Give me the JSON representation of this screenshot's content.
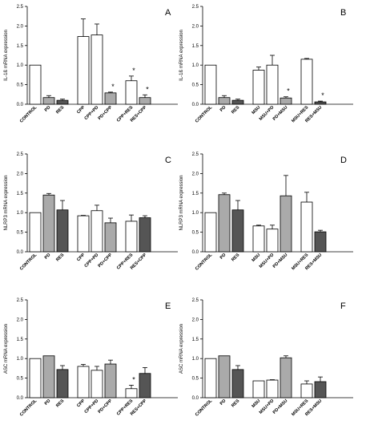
{
  "figure": {
    "panels": [
      {
        "letter": "A",
        "ylabel": "IL-1ß mRNA expression"
      },
      {
        "letter": "B",
        "ylabel": "IL-1ß mRNA expression"
      },
      {
        "letter": "C",
        "ylabel": "NLRP3 mRNA expression"
      },
      {
        "letter": "D",
        "ylabel": "NLRP3 mRNA expression"
      },
      {
        "letter": "E",
        "ylabel": "ASC mRNA expression"
      },
      {
        "letter": "F",
        "ylabel": "ASC mRNA expression"
      }
    ]
  },
  "chart_data": [
    {
      "type": "bar",
      "panel": "A",
      "title": "",
      "xlabel": "",
      "ylabel": "IL-1ß mRNA expression",
      "ylim": [
        0,
        2.5
      ],
      "yticks": [
        0.0,
        0.5,
        1.0,
        1.5,
        2.0,
        2.5
      ],
      "categories": [
        "CONTROL",
        "PD",
        "RES",
        "CPP",
        "CPP+PD",
        "PD+CPP",
        "CPP+RES",
        "RES+CPP"
      ],
      "groups": [
        [
          0,
          1,
          2
        ],
        [
          3,
          4,
          5
        ],
        [
          6,
          7
        ]
      ],
      "values": [
        1.0,
        0.17,
        0.1,
        1.73,
        1.77,
        0.29,
        0.6,
        0.17
      ],
      "errors": [
        0.0,
        0.05,
        0.03,
        0.45,
        0.28,
        0.02,
        0.12,
        0.07
      ],
      "fills": [
        "#ffffff",
        "#aaaaaa",
        "#555555",
        "#ffffff",
        "#ffffff",
        "#aaaaaa",
        "#ffffff",
        "#aaaaaa"
      ],
      "annotations": [
        "",
        "",
        "",
        "",
        "",
        "*",
        "*",
        "*"
      ]
    },
    {
      "type": "bar",
      "panel": "B",
      "title": "",
      "xlabel": "",
      "ylabel": "IL-1ß mRNA expression",
      "ylim": [
        0,
        2.5
      ],
      "yticks": [
        0.0,
        0.5,
        1.0,
        1.5,
        2.0,
        2.5
      ],
      "categories": [
        "CONTROL",
        "PD",
        "RES",
        "MSU",
        "MSU+PD",
        "PD+MSU",
        "MSU+RES",
        "RES+MSU"
      ],
      "groups": [
        [
          0,
          1,
          2
        ],
        [
          3,
          4,
          5
        ],
        [
          6,
          7
        ]
      ],
      "values": [
        1.0,
        0.17,
        0.1,
        0.87,
        1.0,
        0.16,
        1.15,
        0.06
      ],
      "errors": [
        0.0,
        0.05,
        0.03,
        0.08,
        0.25,
        0.03,
        0.02,
        0.02
      ],
      "fills": [
        "#ffffff",
        "#aaaaaa",
        "#555555",
        "#ffffff",
        "#ffffff",
        "#aaaaaa",
        "#ffffff",
        "#555555"
      ],
      "annotations": [
        "",
        "",
        "",
        "",
        "",
        "*",
        "",
        "*"
      ]
    },
    {
      "type": "bar",
      "panel": "C",
      "title": "",
      "xlabel": "",
      "ylabel": "NLRP3 mRNA expression",
      "ylim": [
        0,
        2.5
      ],
      "yticks": [
        0.0,
        0.5,
        1.0,
        1.5,
        2.0,
        2.5
      ],
      "categories": [
        "CONTROL",
        "PD",
        "RES",
        "CPP",
        "CPP+PD",
        "PD+CPP",
        "CPP+RES",
        "RES+CPP"
      ],
      "groups": [
        [
          0,
          1,
          2
        ],
        [
          3,
          4,
          5
        ],
        [
          6,
          7
        ]
      ],
      "values": [
        1.0,
        1.45,
        1.07,
        0.92,
        1.05,
        0.74,
        0.78,
        0.87
      ],
      "errors": [
        0.0,
        0.04,
        0.24,
        0.01,
        0.14,
        0.12,
        0.16,
        0.05
      ],
      "fills": [
        "#ffffff",
        "#aaaaaa",
        "#555555",
        "#ffffff",
        "#ffffff",
        "#aaaaaa",
        "#ffffff",
        "#555555"
      ],
      "annotations": [
        "",
        "",
        "",
        "",
        "",
        "",
        "",
        ""
      ]
    },
    {
      "type": "bar",
      "panel": "D",
      "title": "",
      "xlabel": "",
      "ylabel": "NLRP3 mRNA expression",
      "ylim": [
        0,
        2.5
      ],
      "yticks": [
        0.0,
        0.5,
        1.0,
        1.5,
        2.0,
        2.5
      ],
      "categories": [
        "CONTROL",
        "PD",
        "RES",
        "MSU",
        "MSU+PD",
        "PD+MSU",
        "MSU+RES",
        "RES+MSU"
      ],
      "groups": [
        [
          0,
          1,
          2
        ],
        [
          3,
          4,
          5
        ],
        [
          6,
          7
        ]
      ],
      "values": [
        1.0,
        1.46,
        1.07,
        0.66,
        0.58,
        1.43,
        1.27,
        0.51
      ],
      "errors": [
        0.0,
        0.04,
        0.24,
        0.02,
        0.1,
        0.52,
        0.25,
        0.04
      ],
      "fills": [
        "#ffffff",
        "#aaaaaa",
        "#555555",
        "#ffffff",
        "#ffffff",
        "#aaaaaa",
        "#ffffff",
        "#555555"
      ],
      "annotations": [
        "",
        "",
        "",
        "",
        "",
        "",
        "",
        ""
      ]
    },
    {
      "type": "bar",
      "panel": "E",
      "title": "",
      "xlabel": "",
      "ylabel": "ASC mRNA expression",
      "ylim": [
        0,
        2.5
      ],
      "yticks": [
        0.0,
        0.5,
        1.0,
        1.5,
        2.0,
        2.5
      ],
      "categories": [
        "CONTROL",
        "PD",
        "RES",
        "CPP",
        "CPP+PD",
        "PD+CPP",
        "CPP+RES",
        "RES+CPP"
      ],
      "groups": [
        [
          0,
          1,
          2
        ],
        [
          3,
          4,
          5
        ],
        [
          6,
          7
        ]
      ],
      "values": [
        1.0,
        1.07,
        0.72,
        0.8,
        0.7,
        0.86,
        0.23,
        0.62
      ],
      "errors": [
        0.0,
        0.0,
        0.1,
        0.05,
        0.1,
        0.1,
        0.09,
        0.15
      ],
      "fills": [
        "#ffffff",
        "#aaaaaa",
        "#555555",
        "#ffffff",
        "#ffffff",
        "#aaaaaa",
        "#ffffff",
        "#555555"
      ],
      "annotations": [
        "",
        "",
        "",
        "",
        "",
        "",
        "*",
        ""
      ]
    },
    {
      "type": "bar",
      "panel": "F",
      "title": "",
      "xlabel": "",
      "ylabel": "ASC mRNA expression",
      "ylim": [
        0,
        2.5
      ],
      "yticks": [
        0.0,
        0.5,
        1.0,
        1.5,
        2.0,
        2.5
      ],
      "categories": [
        "CONTROL",
        "PD",
        "RES",
        "MSU",
        "MSU+PD",
        "PD+MSU",
        "MSU+RES",
        "RES+MSU"
      ],
      "groups": [
        [
          0,
          1,
          2
        ],
        [
          3,
          4,
          5
        ],
        [
          6,
          7
        ]
      ],
      "values": [
        1.0,
        1.07,
        0.72,
        0.43,
        0.45,
        1.02,
        0.35,
        0.41
      ],
      "errors": [
        0.0,
        0.0,
        0.1,
        0.0,
        0.01,
        0.05,
        0.08,
        0.12
      ],
      "fills": [
        "#ffffff",
        "#aaaaaa",
        "#555555",
        "#ffffff",
        "#ffffff",
        "#aaaaaa",
        "#ffffff",
        "#555555"
      ],
      "annotations": [
        "",
        "",
        "",
        "",
        "",
        "",
        "",
        ""
      ]
    }
  ]
}
